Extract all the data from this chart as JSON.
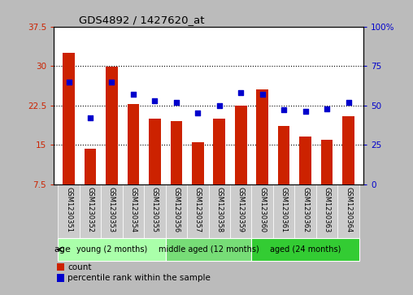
{
  "title": "GDS4892 / 1427620_at",
  "samples": [
    "GSM1230351",
    "GSM1230352",
    "GSM1230353",
    "GSM1230354",
    "GSM1230355",
    "GSM1230356",
    "GSM1230357",
    "GSM1230358",
    "GSM1230359",
    "GSM1230360",
    "GSM1230361",
    "GSM1230362",
    "GSM1230363",
    "GSM1230364"
  ],
  "bar_values": [
    32.5,
    14.3,
    29.8,
    22.8,
    20.0,
    19.5,
    15.5,
    20.0,
    22.5,
    25.5,
    18.5,
    16.5,
    16.0,
    20.5
  ],
  "percentile_values": [
    65,
    42,
    65,
    57,
    53,
    52,
    45,
    50,
    58,
    57,
    47,
    46,
    48,
    52
  ],
  "bar_color": "#cc2200",
  "dot_color": "#0000cc",
  "ylim_left": [
    7.5,
    37.5
  ],
  "ylim_right": [
    0,
    100
  ],
  "yticks_left": [
    7.5,
    15.0,
    22.5,
    30.0,
    37.5
  ],
  "yticks_right": [
    0,
    25,
    50,
    75,
    100
  ],
  "ytick_labels_left": [
    "7.5",
    "15",
    "22.5",
    "30",
    "37.5"
  ],
  "ytick_labels_right": [
    "0",
    "25",
    "50",
    "75",
    "100%"
  ],
  "groups": [
    {
      "label": "young (2 months)",
      "start": 0,
      "end": 4,
      "color": "#aaffaa"
    },
    {
      "label": "middle aged (12 months)",
      "start": 5,
      "end": 8,
      "color": "#77dd77"
    },
    {
      "label": "aged (24 months)",
      "start": 9,
      "end": 13,
      "color": "#33cc33"
    }
  ],
  "age_label": "age",
  "legend_count_label": "count",
  "legend_pct_label": "percentile rank within the sample",
  "bg_color": "#bbbbbb",
  "plot_bg_color": "#ffffff",
  "xticklabel_bg": "#cccccc",
  "bar_width": 0.55
}
